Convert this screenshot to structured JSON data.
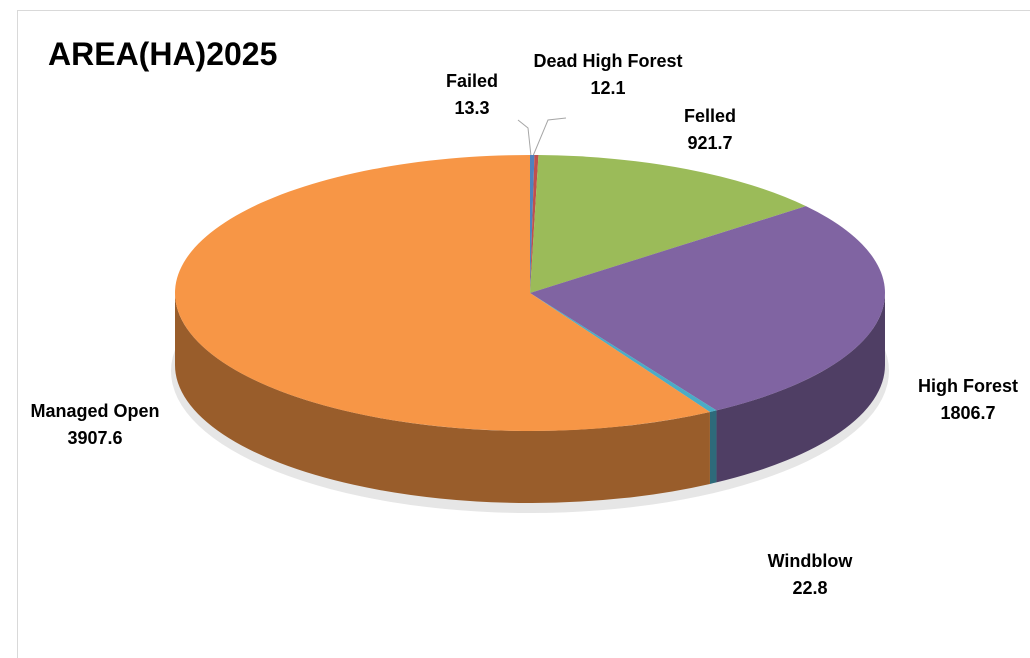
{
  "chart_data": {
    "type": "pie",
    "title": "AREA(HA)2025",
    "categories": [
      "Failed",
      "Dead High Forest",
      "Felled",
      "High Forest",
      "Windblow",
      "Managed Open"
    ],
    "values": [
      13.3,
      12.1,
      921.7,
      1806.7,
      22.8,
      3907.6
    ],
    "colors": [
      "#4f81bd",
      "#c0504d",
      "#9bbb59",
      "#8064a2",
      "#4bacc6",
      "#f79646"
    ]
  }
}
